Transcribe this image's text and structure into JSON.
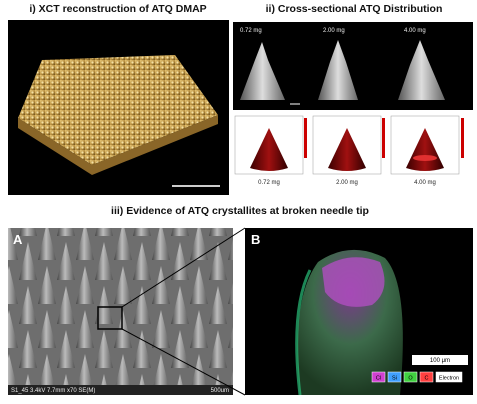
{
  "panel_i": {
    "title": "i) XCT reconstruction of ATQ DMAP"
  },
  "panel_ii": {
    "title": "ii) Cross-sectional ATQ Distribution",
    "sem_labels": [
      "0.72 mg",
      "2.00 mg",
      "4.00 mg"
    ],
    "plot_labels": [
      "0.72 mg",
      "2.00 mg",
      "4.00 mg"
    ]
  },
  "panel_iii": {
    "title": "iii) Evidence of ATQ crystallites at broken needle tip",
    "a": {
      "label": "A",
      "footer": "S1_45 3.4kV 7.7mm x70 SE(M)",
      "scale": "500um"
    },
    "b": {
      "label": "B",
      "scale": "100 μm",
      "legend": [
        "Cl",
        "Si",
        "O",
        "C",
        "Electron"
      ]
    }
  }
}
